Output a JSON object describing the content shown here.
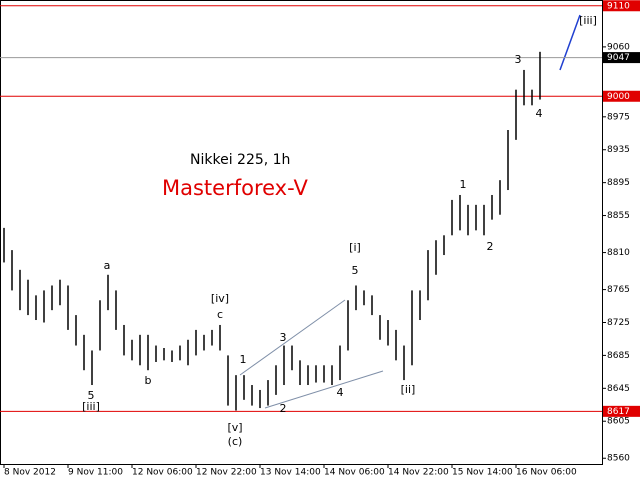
{
  "chart_data": {
    "type": "ohlc",
    "title": "Nikkei 225, 1h",
    "subtitle": "Masterforex-V",
    "categories": [
      "8 Nov 2012",
      null,
      null,
      null,
      null,
      null,
      null,
      null,
      "9 Nov 11:00",
      null,
      null,
      null,
      null,
      null,
      null,
      null,
      "12 Nov 06:00",
      null,
      null,
      null,
      null,
      null,
      null,
      null,
      "12 Nov 22:00",
      null,
      null,
      null,
      null,
      null,
      null,
      null,
      "13 Nov 14:00",
      null,
      null,
      null,
      null,
      null,
      null,
      null,
      "14 Nov 06:00",
      null,
      null,
      null,
      null,
      null,
      null,
      null,
      "14 Nov 22:00",
      null,
      null,
      null,
      null,
      null,
      null,
      null,
      "15 Nov 14:00",
      null,
      null,
      null,
      null,
      null,
      null,
      null,
      "16 Nov 06:00",
      null,
      null,
      null
    ],
    "high": [
      8840,
      8813,
      8789,
      8777,
      8758,
      8764,
      8770,
      8777,
      8770,
      8734,
      8710,
      8691,
      8752,
      8783,
      8764,
      8722,
      8704,
      8710,
      8710,
      8697,
      8694,
      8691,
      8697,
      8704,
      8716,
      8710,
      8716,
      8722,
      8685,
      8661,
      8661,
      8649,
      8643,
      8655,
      8673,
      8697,
      8697,
      8679,
      8673,
      8673,
      8673,
      8673,
      8697,
      8752,
      8770,
      8764,
      8758,
      8734,
      8728,
      8716,
      8697,
      8764,
      8764,
      8813,
      8825,
      8831,
      8874,
      8880,
      8868,
      8868,
      8868,
      8880,
      8898,
      8959,
      9008,
      9032,
      9008,
      9054
    ],
    "low": [
      8798,
      8764,
      8740,
      8734,
      8728,
      8725,
      8740,
      8746,
      8716,
      8697,
      8667,
      8649,
      8691,
      8740,
      8716,
      8685,
      8679,
      8673,
      8667,
      8677,
      8679,
      8677,
      8679,
      8673,
      8685,
      8691,
      8697,
      8691,
      8624,
      8618,
      8631,
      8624,
      8621,
      8624,
      8637,
      8649,
      8667,
      8649,
      8649,
      8652,
      8652,
      8649,
      8655,
      8691,
      8740,
      8746,
      8734,
      8704,
      8697,
      8679,
      8655,
      8673,
      8728,
      8752,
      8783,
      8807,
      8831,
      8837,
      8831,
      8837,
      8831,
      8850,
      8856,
      8886,
      8947,
      8989,
      8989,
      8996
    ],
    "color": "#000000",
    "ylim": [
      8553,
      9117
    ],
    "yticks": [
      9060,
      8975,
      8935,
      8895,
      8855,
      8810,
      8765,
      8725,
      8685,
      8645,
      8605,
      8560
    ],
    "levels": [
      {
        "value": 9110,
        "color": "#e00000"
      },
      {
        "value": 9000,
        "color": "#e00000"
      },
      {
        "value": 8617,
        "color": "#e00000"
      }
    ],
    "current_price": {
      "value": 9047,
      "color": "#000000"
    },
    "annotations": [
      "a",
      "5",
      "[iii]",
      "b",
      "[iv]",
      "c",
      "1",
      "[v]",
      "(c)",
      "3",
      "2",
      "4",
      "[i]",
      "5",
      "[ii]",
      "1",
      "2",
      "3",
      "4",
      "[iii]"
    ]
  }
}
